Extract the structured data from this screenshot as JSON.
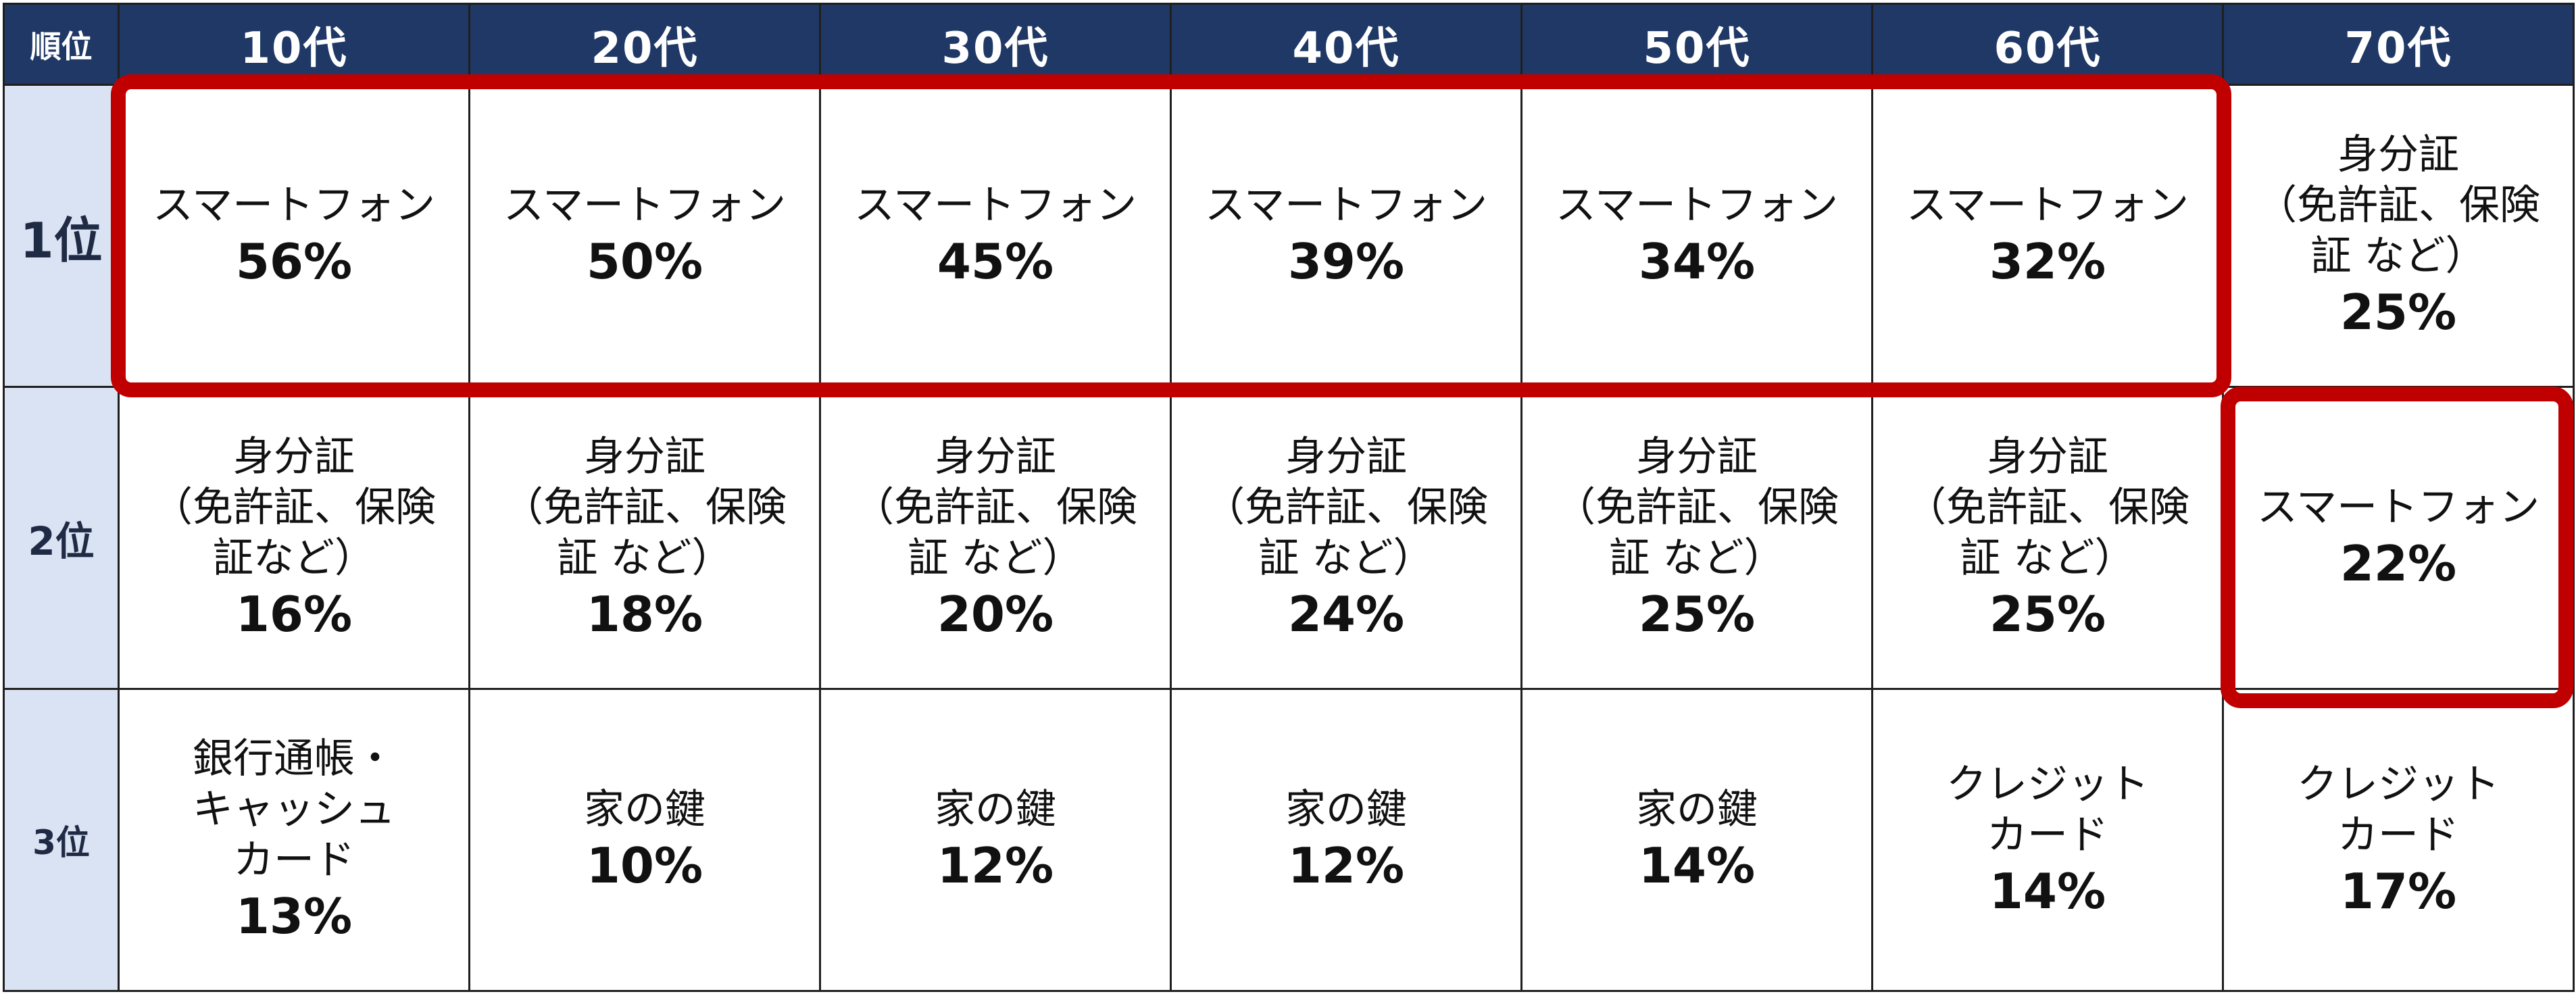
{
  "chart_data": {
    "type": "table",
    "corner_label": "順位",
    "columns": [
      "10代",
      "20代",
      "30代",
      "40代",
      "50代",
      "60代",
      "70代"
    ],
    "rows": [
      {
        "rank": "1位",
        "cells": [
          {
            "item": "スマートフォン",
            "pct": "56%"
          },
          {
            "item": "スマートフォン",
            "pct": "50%"
          },
          {
            "item": "スマートフォン",
            "pct": "45%"
          },
          {
            "item": "スマートフォン",
            "pct": "39%"
          },
          {
            "item": "スマートフォン",
            "pct": "34%"
          },
          {
            "item": "スマートフォン",
            "pct": "32%"
          },
          {
            "item": "身分証\n（免許証、保険\n証 など）",
            "pct": "25%"
          }
        ]
      },
      {
        "rank": "2位",
        "cells": [
          {
            "item": "身分証\n（免許証、保険\n証など）",
            "pct": "16%"
          },
          {
            "item": "身分証\n（免許証、保険\n証 など）",
            "pct": "18%"
          },
          {
            "item": "身分証\n（免許証、保険\n証 など）",
            "pct": "20%"
          },
          {
            "item": "身分証\n（免許証、保険\n証 など）",
            "pct": "24%"
          },
          {
            "item": "身分証\n（免許証、保険\n証 など）",
            "pct": "25%"
          },
          {
            "item": "身分証\n（免許証、保険\n証 など）",
            "pct": "25%"
          },
          {
            "item": "スマートフォン",
            "pct": "22%"
          }
        ]
      },
      {
        "rank": "3位",
        "cells": [
          {
            "item": "銀行通帳・\nキャッシュ\nカード",
            "pct": "13%"
          },
          {
            "item": "家の鍵",
            "pct": "10%"
          },
          {
            "item": "家の鍵",
            "pct": "12%"
          },
          {
            "item": "家の鍵",
            "pct": "12%"
          },
          {
            "item": "家の鍵",
            "pct": "14%"
          },
          {
            "item": "クレジット\nカード",
            "pct": "14%"
          },
          {
            "item": "クレジット\nカード",
            "pct": "17%"
          }
        ]
      }
    ],
    "values": [
      [
        56,
        50,
        45,
        39,
        34,
        32,
        25
      ],
      [
        16,
        18,
        20,
        24,
        25,
        25,
        22
      ],
      [
        13,
        10,
        12,
        12,
        14,
        14,
        17
      ]
    ],
    "highlight_color": "#c00000",
    "header_color": "#1f3866",
    "rank_column_color": "#dae3f3"
  }
}
